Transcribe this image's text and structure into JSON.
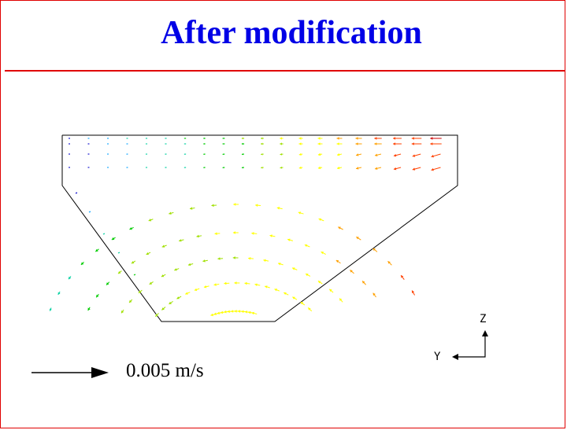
{
  "slide": {
    "title": "After modification",
    "frame_color": "#e00000",
    "title_color": "#0000e6"
  },
  "diagram": {
    "type": "velocity-vector-field",
    "reference_vector_label": "0.005 m/s",
    "axis_labels": {
      "vertical": "Z",
      "horizontal": "Y"
    },
    "color_scale": [
      "#0000cc",
      "#00a0ff",
      "#00d0a0",
      "#00cc00",
      "#a0e000",
      "#ffff00",
      "#ffa000",
      "#ff4000",
      "#cc0000"
    ]
  }
}
